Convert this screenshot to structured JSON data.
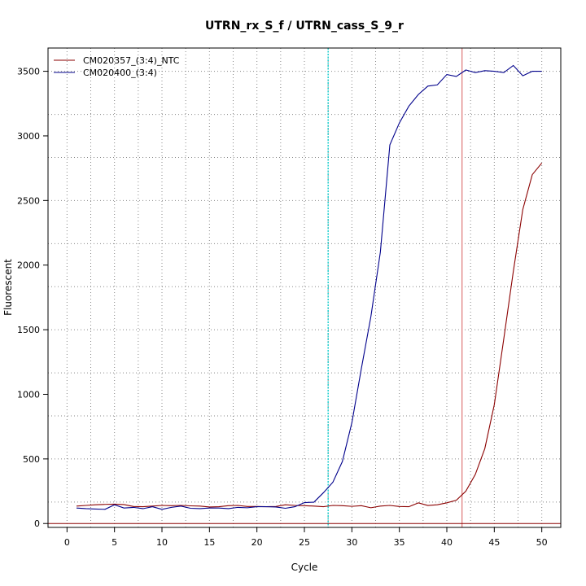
{
  "chart_data": {
    "type": "line",
    "title": "UTRN_rx_S_f / UTRN_cass_S_9_r",
    "xlabel": "Cycle",
    "ylabel": "Fluorescent",
    "xlim": [
      -2,
      52
    ],
    "ylim": [
      -30,
      3680
    ],
    "x_ticks": [
      0,
      5,
      10,
      15,
      20,
      25,
      30,
      35,
      40,
      45,
      50
    ],
    "y_ticks": [
      0,
      500,
      1000,
      1500,
      2000,
      2500,
      3000,
      3500
    ],
    "x_minor_grid": [
      2.5,
      7.5,
      12.5,
      17.5,
      22.5,
      27.5,
      32.5,
      37.5,
      42.5,
      47.5
    ],
    "y_minor_grid": [
      166,
      500,
      833,
      1166,
      1500,
      1833,
      2166,
      2500,
      2833,
      3166,
      3500
    ],
    "grid": true,
    "legend_position": "top-left",
    "reference_lines": {
      "vertical": [
        {
          "x": 27.5,
          "color": "#00cccc",
          "style": "dotted"
        },
        {
          "x": 41.6,
          "color": "#e08080",
          "style": "solid"
        }
      ],
      "horizontal": [
        {
          "y": 0,
          "color": "#8b0000",
          "style": "solid"
        }
      ]
    },
    "series": [
      {
        "name": "CM020357_(3:4)_NTC",
        "color": "#8b0000",
        "x": [
          1,
          2,
          3,
          4,
          5,
          6,
          7,
          8,
          9,
          10,
          11,
          12,
          13,
          14,
          15,
          16,
          17,
          18,
          19,
          20,
          21,
          22,
          23,
          24,
          25,
          26,
          27,
          28,
          29,
          30,
          31,
          32,
          33,
          34,
          35,
          36,
          37,
          38,
          39,
          40,
          41,
          42,
          43,
          44,
          45,
          46,
          47,
          48,
          49,
          50
        ],
        "values": [
          135,
          140,
          145,
          148,
          150,
          147,
          132,
          130,
          135,
          140,
          138,
          140,
          137,
          135,
          128,
          130,
          138,
          140,
          132,
          132,
          130,
          132,
          145,
          140,
          138,
          135,
          130,
          140,
          138,
          133,
          138,
          122,
          135,
          140,
          132,
          130,
          160,
          140,
          145,
          160,
          180,
          250,
          380,
          580,
          920,
          1430,
          1950,
          2430,
          2700,
          2790
        ]
      },
      {
        "name": "CM020400_(3:4)",
        "color": "#00008b",
        "x": [
          1,
          2,
          3,
          4,
          5,
          6,
          7,
          8,
          9,
          10,
          11,
          12,
          13,
          14,
          15,
          16,
          17,
          18,
          19,
          20,
          21,
          22,
          23,
          24,
          25,
          26,
          27,
          28,
          29,
          30,
          31,
          32,
          33,
          34,
          35,
          36,
          37,
          38,
          39,
          40,
          41,
          42,
          43,
          44,
          45,
          46,
          47,
          48,
          49,
          50
        ],
        "values": [
          120,
          115,
          112,
          110,
          145,
          120,
          125,
          115,
          130,
          110,
          125,
          135,
          118,
          115,
          120,
          120,
          115,
          125,
          122,
          130,
          130,
          128,
          118,
          130,
          162,
          165,
          238,
          320,
          480,
          780,
          1200,
          1600,
          2100,
          2930,
          3100,
          3230,
          3320,
          3385,
          3395,
          3475,
          3460,
          3510,
          3490,
          3505,
          3500,
          3490,
          3545,
          3465,
          3500,
          3500
        ]
      }
    ]
  }
}
